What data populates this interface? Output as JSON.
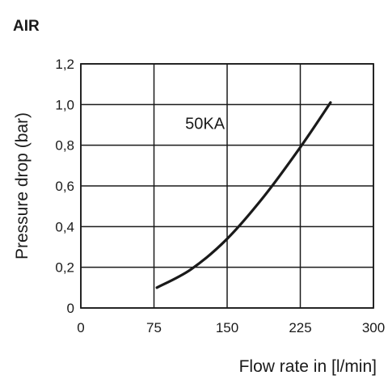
{
  "chart_data": {
    "type": "line",
    "title": "AIR",
    "xlabel": "Flow rate in [l/min]",
    "ylabel": "Pressure drop (bar)",
    "xlim": [
      0,
      300
    ],
    "ylim": [
      0,
      1.2
    ],
    "x_ticks": [
      {
        "value": 0,
        "label": "0"
      },
      {
        "value": 75,
        "label": "75"
      },
      {
        "value": 150,
        "label": "150"
      },
      {
        "value": 225,
        "label": "225"
      },
      {
        "value": 300,
        "label": "300"
      }
    ],
    "y_ticks": [
      {
        "value": 0,
        "label": "0"
      },
      {
        "value": 0.2,
        "label": "0,2"
      },
      {
        "value": 0.4,
        "label": "0,4"
      },
      {
        "value": 0.6,
        "label": "0,6"
      },
      {
        "value": 0.8,
        "label": "0,8"
      },
      {
        "value": 1.0,
        "label": "1,0"
      },
      {
        "value": 1.2,
        "label": "1,2"
      }
    ],
    "grid": true,
    "series": [
      {
        "name": "50KA",
        "color": "#1a1a1a",
        "label_anchor": {
          "x": 107,
          "y": 0.88
        },
        "points": [
          {
            "x": 78,
            "y": 0.1
          },
          {
            "x": 113,
            "y": 0.19
          },
          {
            "x": 150,
            "y": 0.34
          },
          {
            "x": 188,
            "y": 0.55
          },
          {
            "x": 225,
            "y": 0.79
          },
          {
            "x": 256,
            "y": 1.01
          }
        ]
      }
    ]
  }
}
